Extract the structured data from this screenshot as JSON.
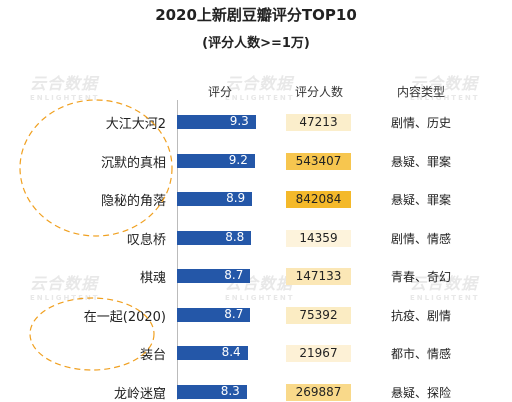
{
  "chart_data": {
    "type": "table",
    "title": "2020上新剧豆瓣评分TOP10",
    "subtitle": "(评分人数>=1万)",
    "columns": [
      "评分",
      "评分人数",
      "内容类型"
    ],
    "rows": [
      {
        "name": "大江大河2",
        "rating": 9.3,
        "count": "47213",
        "genre": "剧情、历史",
        "count_color": "#fbeecb"
      },
      {
        "name": "沉默的真相",
        "rating": 9.2,
        "count": "543407",
        "genre": "悬疑、罪案",
        "count_color": "#f7c64f"
      },
      {
        "name": "隐秘的角落",
        "rating": 8.9,
        "count": "842084",
        "genre": "悬疑、罪案",
        "count_color": "#f4b92a"
      },
      {
        "name": "叹息桥",
        "rating": 8.8,
        "count": "14359",
        "genre": "剧情、情感",
        "count_color": "#fdf3dc"
      },
      {
        "name": "棋魂",
        "rating": 8.7,
        "count": "147133",
        "genre": "青春、奇幻",
        "count_color": "#fbe7b6"
      },
      {
        "name": "在一起(2020)",
        "rating": 8.7,
        "count": "75392",
        "genre": "抗疫、剧情",
        "count_color": "#fbecc3"
      },
      {
        "name": "装台",
        "rating": 8.4,
        "count": "21967",
        "genre": "都市、情感",
        "count_color": "#fdf1d6"
      },
      {
        "name": "龙岭迷窟",
        "rating": 8.3,
        "count": "269887",
        "genre": "悬疑、探险",
        "count_color": "#f9d98a"
      }
    ],
    "rating_range": [
      0,
      10
    ]
  },
  "watermark": {
    "text": "云合数据",
    "sub": "ENLIGHTENT"
  },
  "colors": {
    "bar": "#2457a8",
    "highlight_circle": "#f0a020"
  }
}
